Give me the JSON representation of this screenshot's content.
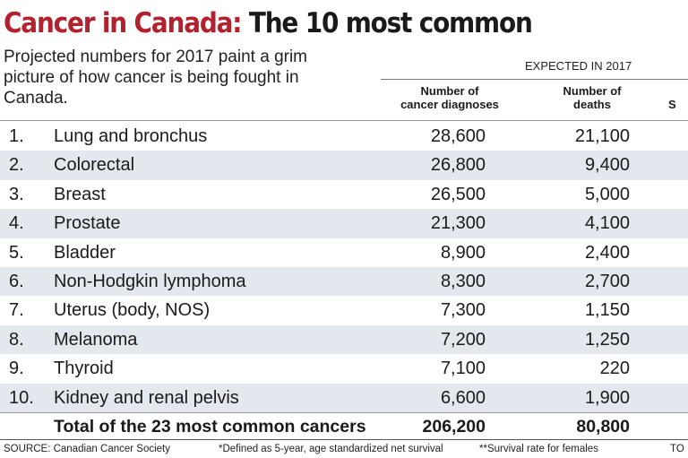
{
  "title": {
    "accent": "Cancer in Canada:",
    "rest": " The 10 most common"
  },
  "subtitle": "Projected numbers for 2017 paint a grim picture of how cancer is being fought in Canada.",
  "table": {
    "group_header": "EXPECTED IN 2017",
    "columns": {
      "diagnoses": [
        "Number of",
        "cancer diagnoses"
      ],
      "deaths": [
        "Number of",
        "deaths"
      ],
      "third_partial": "S"
    },
    "rows": [
      {
        "rank": "1.",
        "name": "Lung and bronchus",
        "diagnoses": "28,600",
        "deaths": "21,100"
      },
      {
        "rank": "2.",
        "name": "Colorectal",
        "diagnoses": "26,800",
        "deaths": "9,400"
      },
      {
        "rank": "3.",
        "name": "Breast",
        "diagnoses": "26,500",
        "deaths": "5,000"
      },
      {
        "rank": "4.",
        "name": "Prostate",
        "diagnoses": "21,300",
        "deaths": "4,100"
      },
      {
        "rank": "5.",
        "name": "Bladder",
        "diagnoses": "8,900",
        "deaths": "2,400"
      },
      {
        "rank": "6.",
        "name": "Non-Hodgkin lymphoma",
        "diagnoses": "8,300",
        "deaths": "2,700"
      },
      {
        "rank": "7.",
        "name": "Uterus (body, NOS)",
        "diagnoses": "7,300",
        "deaths": "1,150"
      },
      {
        "rank": "8.",
        "name": "Melanoma",
        "diagnoses": "7,200",
        "deaths": "1,250"
      },
      {
        "rank": "9.",
        "name": "Thyroid",
        "diagnoses": "7,100",
        "deaths": "220"
      },
      {
        "rank": "10.",
        "name": "Kidney and renal pelvis",
        "diagnoses": "6,600",
        "deaths": "1,900"
      }
    ],
    "total": {
      "label": "Total of the 23 most common cancers",
      "diagnoses": "206,200",
      "deaths": "80,800"
    }
  },
  "footer": {
    "source": "SOURCE: Canadian Cancer Society",
    "note1": "*Defined as 5-year, age standardized net survival",
    "note2": "**Survival rate for females",
    "credit_partial": "TO"
  },
  "colors": {
    "accent": "#b3202e",
    "row_shade": "#e3e8ef",
    "text": "#1a1a1a"
  }
}
